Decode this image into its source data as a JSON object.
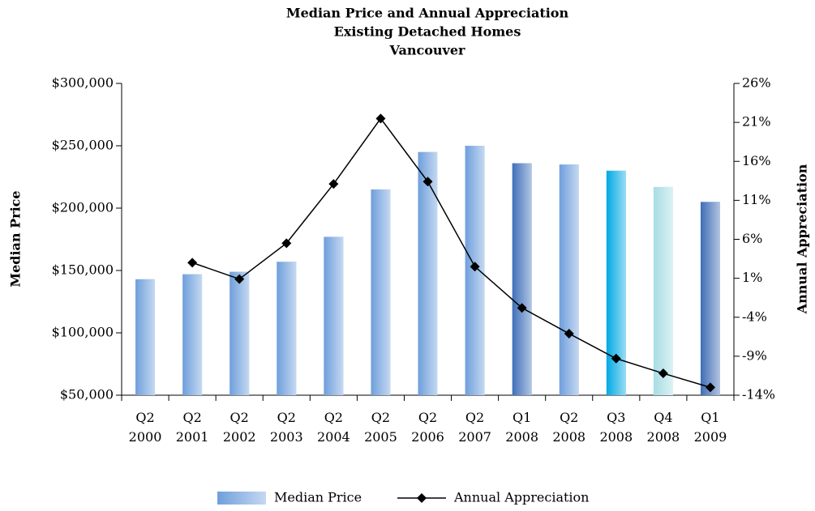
{
  "chart_data": {
    "type": "bar",
    "title": [
      "Median Price and Annual Appreciation",
      "Existing Detached Homes",
      "Vancouver"
    ],
    "ylabel": "Median Price",
    "y2label": "Annual Appreciation",
    "categories": [
      "Q2 2000",
      "Q2 2001",
      "Q2 2002",
      "Q2 2003",
      "Q2 2004",
      "Q2 2005",
      "Q2 2006",
      "Q2 2007",
      "Q1 2008",
      "Q2 2008",
      "Q3 2008",
      "Q4 2008",
      "Q1 2009"
    ],
    "series": [
      {
        "name": "Median Price",
        "type": "bar",
        "colors": [
          "#6f9fdc",
          "#6f9fdc",
          "#6f9fdc",
          "#6f9fdc",
          "#6f9fdc",
          "#6f9fdc",
          "#6f9fdc",
          "#6f9fdc",
          "#3f6fba",
          "#6f9fdc",
          "#00a9e4",
          "#a6dde4",
          "#3f6db5"
        ],
        "values": [
          143000,
          147000,
          149000,
          157000,
          177000,
          215000,
          245000,
          250000,
          236000,
          235000,
          230000,
          217000,
          205000
        ]
      },
      {
        "name": "Annual Appreciation",
        "type": "line",
        "axis": "y2",
        "color": "#000000",
        "values": [
          null,
          3.0,
          0.9,
          5.5,
          13.1,
          21.5,
          13.4,
          2.5,
          -2.8,
          -6.1,
          -9.3,
          -11.2,
          -13.0
        ]
      }
    ],
    "ylim": [
      50000,
      300000
    ],
    "yticks": [
      {
        "value": 50000,
        "label": "$50,000"
      },
      {
        "value": 100000,
        "label": "$100,000"
      },
      {
        "value": 150000,
        "label": "$150,000"
      },
      {
        "value": 200000,
        "label": "$200,000"
      },
      {
        "value": 250000,
        "label": "$250,000"
      },
      {
        "value": 300000,
        "label": "$300,000"
      }
    ],
    "y2lim": [
      -14,
      26
    ],
    "y2ticks": [
      {
        "value": -14,
        "label": "-14%"
      },
      {
        "value": -9,
        "label": "-9%"
      },
      {
        "value": -4,
        "label": "-4%"
      },
      {
        "value": 1,
        "label": "1%"
      },
      {
        "value": 6,
        "label": "6%"
      },
      {
        "value": 11,
        "label": "11%"
      },
      {
        "value": 16,
        "label": "16%"
      },
      {
        "value": 21,
        "label": "21%"
      },
      {
        "value": 26,
        "label": "26%"
      }
    ],
    "legend": "bottom"
  }
}
